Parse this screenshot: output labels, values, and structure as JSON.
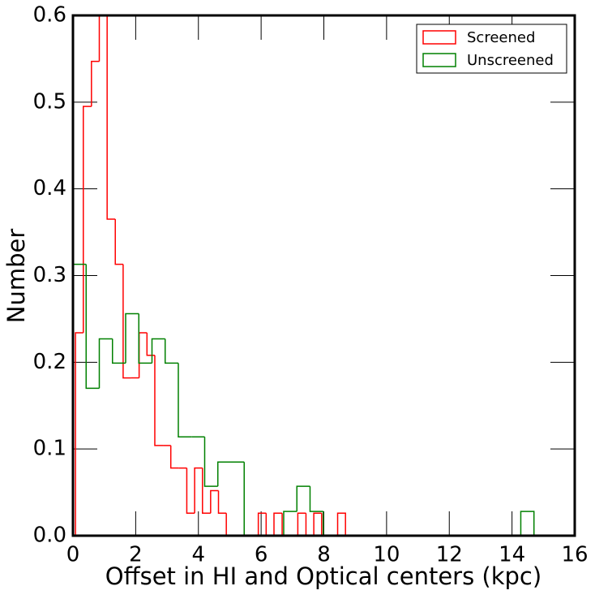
{
  "chart_data": {
    "type": "histogram",
    "xlabel": "Offset in HI and Optical centers (kpc)",
    "ylabel": "Number",
    "xlim": [
      0,
      16
    ],
    "xticks": [
      0,
      2,
      4,
      6,
      8,
      10,
      12,
      14,
      16
    ],
    "ylim": [
      0,
      0.6
    ],
    "yticks": [
      {
        "value": 0,
        "label": "0.0"
      },
      0.1,
      0.2,
      0.3,
      0.4,
      0.5,
      0.6
    ],
    "legend": "upper right",
    "series": [
      {
        "name": "Screened",
        "color": "#ff0000",
        "bins": [
          0.08,
          0.33,
          0.59,
          0.84,
          1.09,
          1.35,
          1.6,
          1.85,
          2.11,
          2.36,
          2.61,
          2.87,
          3.12,
          3.37,
          3.63,
          3.88,
          4.13,
          4.39,
          4.64,
          4.89,
          5.15,
          5.4,
          5.65,
          5.91,
          6.16,
          6.41,
          6.67,
          6.92,
          7.17,
          7.43,
          7.68,
          7.93,
          8.19,
          8.44,
          8.69
        ],
        "values": [
          0.234,
          0.495,
          0.547,
          0.6,
          0.365,
          0.313,
          0.182,
          0.182,
          0.234,
          0.208,
          0.104,
          0.104,
          0.078,
          0.078,
          0.026,
          0.078,
          0.026,
          0.052,
          0.026,
          0,
          0,
          0,
          0,
          0.026,
          0,
          0.026,
          0,
          0,
          0.026,
          0,
          0.026,
          0,
          0,
          0.026
        ]
      },
      {
        "name": "Unscreened",
        "color": "#008000",
        "bins": [
          0,
          0.42,
          0.84,
          1.26,
          1.68,
          2.1,
          2.52,
          2.94,
          3.36,
          3.78,
          4.2,
          4.62,
          5.04,
          5.46,
          5.88,
          6.3,
          6.72,
          7.14,
          7.56,
          7.98,
          8.4,
          8.82,
          9.24,
          9.66,
          10.08,
          10.5,
          10.92,
          11.34,
          11.76,
          12.18,
          12.6,
          13.02,
          13.44,
          13.86,
          14.28,
          14.7
        ],
        "values": [
          0.313,
          0.17,
          0.227,
          0.199,
          0.256,
          0.199,
          0.227,
          0.199,
          0.114,
          0.114,
          0.057,
          0.085,
          0.085,
          0,
          0,
          0,
          0.028,
          0.057,
          0.028,
          0,
          0,
          0,
          0,
          0,
          0,
          0,
          0,
          0,
          0,
          0,
          0,
          0,
          0,
          0,
          0.028
        ]
      }
    ]
  }
}
